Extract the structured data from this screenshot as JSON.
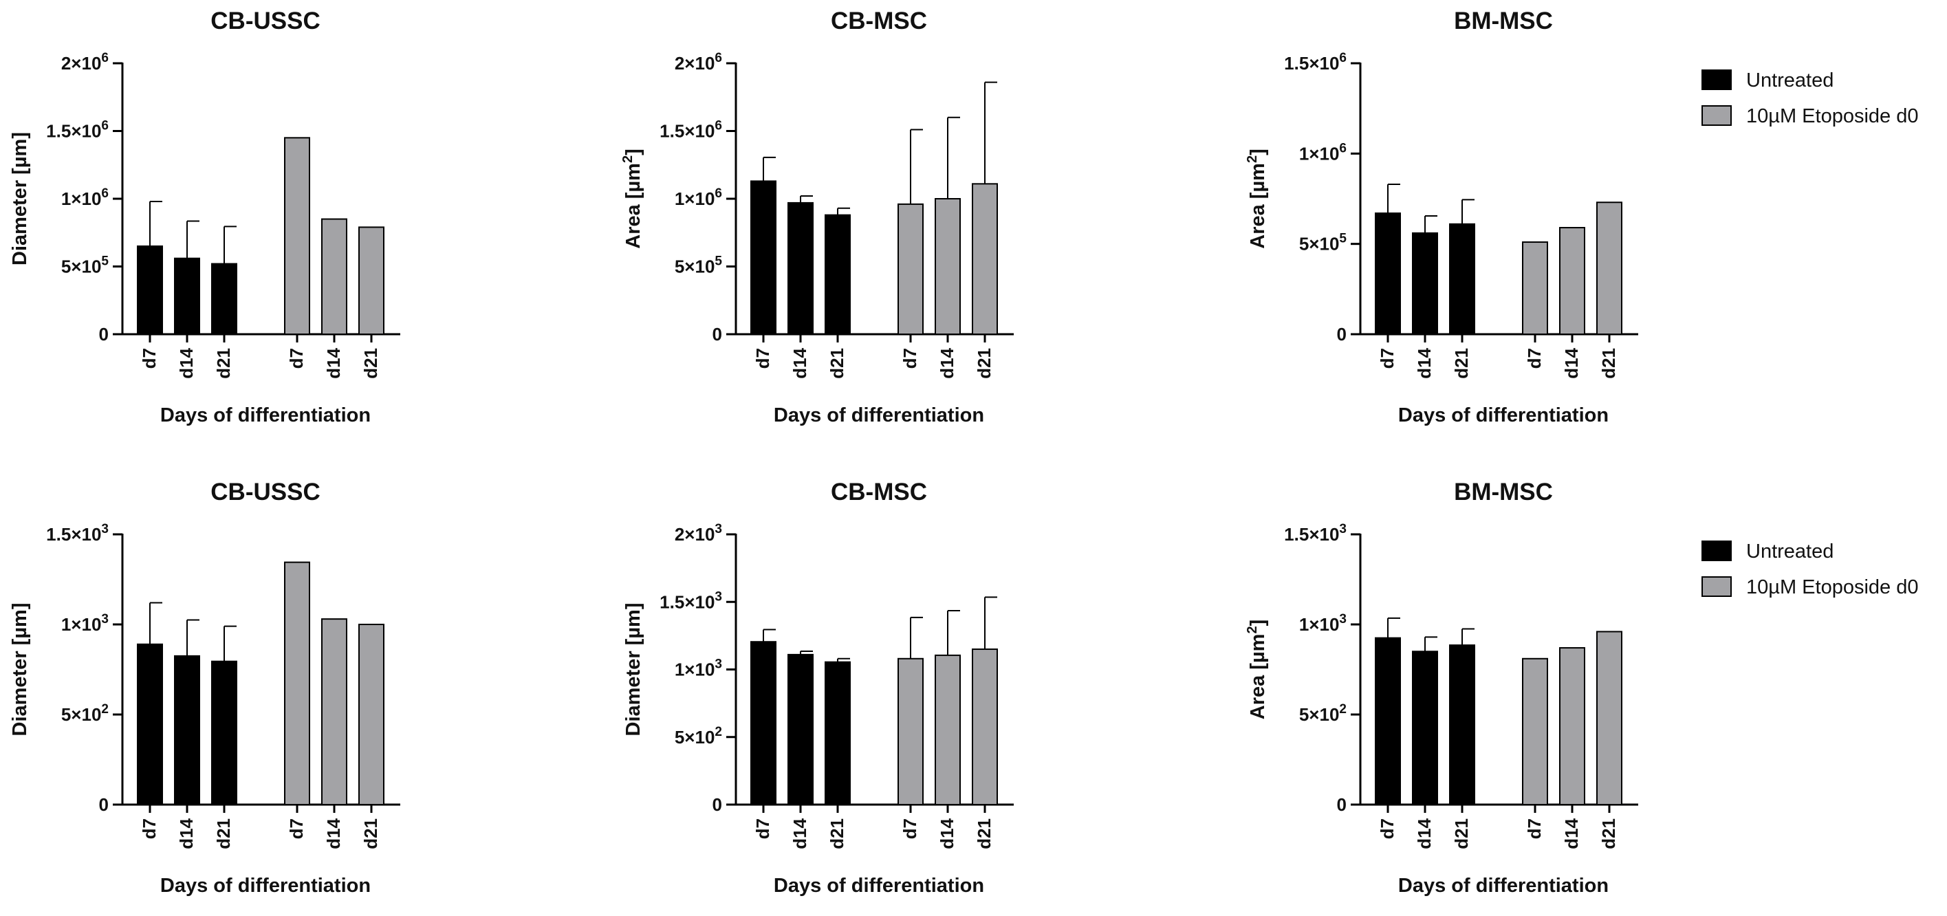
{
  "legend": {
    "entries": [
      {
        "label": "Untreated",
        "color": "#000000"
      },
      {
        "label": "10µM Etoposide d0",
        "color": "#a3a3a6"
      }
    ]
  },
  "chart_data": [
    {
      "type": "bar",
      "title": "CB-USSC",
      "ylabel": {
        "base": "Diameter [µm]",
        "sup": ""
      },
      "xlabel": "Days of differentiation",
      "categories": [
        "d7",
        "d14",
        "d21",
        "d7",
        "d14",
        "d21"
      ],
      "groups": [
        "Untreated",
        "Untreated",
        "Untreated",
        "10µM Etoposide d0",
        "10µM Etoposide d0",
        "10µM Etoposide d0"
      ],
      "values": [
        650000,
        560000,
        520000,
        1450000,
        850000,
        790000
      ],
      "errors": [
        330000,
        275000,
        275000,
        null,
        null,
        null
      ],
      "ylim": [
        0,
        2000000
      ],
      "yticks": [
        {
          "value": 0,
          "base": "0",
          "sup": ""
        },
        {
          "value": 500000,
          "base": "5×10",
          "sup": "5"
        },
        {
          "value": 1000000,
          "base": "1×10",
          "sup": "6"
        },
        {
          "value": 1500000,
          "base": "1.5×10",
          "sup": "6"
        },
        {
          "value": 2000000,
          "base": "2×10",
          "sup": "6"
        }
      ]
    },
    {
      "type": "bar",
      "title": "CB-MSC",
      "ylabel": {
        "base": "Area [µm",
        "sup": "2",
        "tail": "]"
      },
      "xlabel": "Days of differentiation",
      "categories": [
        "d7",
        "d14",
        "d21",
        "d7",
        "d14",
        "d21"
      ],
      "groups": [
        "Untreated",
        "Untreated",
        "Untreated",
        "10µM Etoposide d0",
        "10µM Etoposide d0",
        "10µM Etoposide d0"
      ],
      "values": [
        1130000,
        970000,
        880000,
        960000,
        1000000,
        1110000
      ],
      "errors": [
        175000,
        50000,
        50000,
        550000,
        600000,
        750000
      ],
      "ylim": [
        0,
        2000000
      ],
      "yticks": [
        {
          "value": 0,
          "base": "0",
          "sup": ""
        },
        {
          "value": 500000,
          "base": "5×10",
          "sup": "5"
        },
        {
          "value": 1000000,
          "base": "1×10",
          "sup": "6"
        },
        {
          "value": 1500000,
          "base": "1.5×10",
          "sup": "6"
        },
        {
          "value": 2000000,
          "base": "2×10",
          "sup": "6"
        }
      ]
    },
    {
      "type": "bar",
      "title": "BM-MSC",
      "ylabel": {
        "base": "Area [µm",
        "sup": "2",
        "tail": "]"
      },
      "xlabel": "Days of differentiation",
      "categories": [
        "d7",
        "d14",
        "d21",
        "d7",
        "d14",
        "d21"
      ],
      "groups": [
        "Untreated",
        "Untreated",
        "Untreated",
        "10µM Etoposide d0",
        "10µM Etoposide d0",
        "10µM Etoposide d0"
      ],
      "values": [
        670000,
        560000,
        610000,
        510000,
        590000,
        730000
      ],
      "errors": [
        160000,
        95000,
        135000,
        null,
        null,
        null
      ],
      "ylim": [
        0,
        1500000
      ],
      "yticks": [
        {
          "value": 0,
          "base": "0",
          "sup": ""
        },
        {
          "value": 500000,
          "base": "5×10",
          "sup": "5"
        },
        {
          "value": 1000000,
          "base": "1×10",
          "sup": "6"
        },
        {
          "value": 1500000,
          "base": "1.5×10",
          "sup": "6"
        }
      ]
    },
    {
      "type": "bar",
      "title": "CB-USSC",
      "ylabel": {
        "base": "Diameter [µm]",
        "sup": ""
      },
      "xlabel": "Days of differentiation",
      "categories": [
        "d7",
        "d14",
        "d21",
        "d7",
        "d14",
        "d21"
      ],
      "groups": [
        "Untreated",
        "Untreated",
        "Untreated",
        "10µM Etoposide d0",
        "10µM Etoposide d0",
        "10µM Etoposide d0"
      ],
      "values": [
        890,
        825,
        795,
        1345,
        1030,
        1000
      ],
      "errors": [
        230,
        200,
        195,
        null,
        null,
        null
      ],
      "ylim": [
        0,
        1500
      ],
      "yticks": [
        {
          "value": 0,
          "base": "0",
          "sup": ""
        },
        {
          "value": 500,
          "base": "5×10",
          "sup": "2"
        },
        {
          "value": 1000,
          "base": "1×10",
          "sup": "3"
        },
        {
          "value": 1500,
          "base": "1.5×10",
          "sup": "3"
        }
      ]
    },
    {
      "type": "bar",
      "title": "CB-MSC",
      "ylabel": {
        "base": "Diameter [µm]",
        "sup": ""
      },
      "xlabel": "Days of differentiation",
      "categories": [
        "d7",
        "d14",
        "d21",
        "d7",
        "d14",
        "d21"
      ],
      "groups": [
        "Untreated",
        "Untreated",
        "Untreated",
        "10µM Etoposide d0",
        "10µM Etoposide d0",
        "10µM Etoposide d0"
      ],
      "values": [
        1205,
        1110,
        1055,
        1080,
        1105,
        1150
      ],
      "errors": [
        90,
        25,
        25,
        305,
        330,
        385
      ],
      "ylim": [
        0,
        2000
      ],
      "yticks": [
        {
          "value": 0,
          "base": "0",
          "sup": ""
        },
        {
          "value": 500,
          "base": "5×10",
          "sup": "2"
        },
        {
          "value": 1000,
          "base": "1×10",
          "sup": "3"
        },
        {
          "value": 1500,
          "base": "1.5×10",
          "sup": "3"
        },
        {
          "value": 2000,
          "base": "2×10",
          "sup": "3"
        }
      ]
    },
    {
      "type": "bar",
      "title": "BM-MSC",
      "ylabel": {
        "base": "Area [µm",
        "sup": "2",
        "tail": "]"
      },
      "xlabel": "Days of differentiation",
      "categories": [
        "d7",
        "d14",
        "d21",
        "d7",
        "d14",
        "d21"
      ],
      "groups": [
        "Untreated",
        "Untreated",
        "Untreated",
        "10µM Etoposide d0",
        "10µM Etoposide d0",
        "10µM Etoposide d0"
      ],
      "values": [
        925,
        850,
        885,
        810,
        870,
        960
      ],
      "errors": [
        110,
        80,
        90,
        null,
        null,
        null
      ],
      "ylim": [
        0,
        1500
      ],
      "yticks": [
        {
          "value": 0,
          "base": "0",
          "sup": ""
        },
        {
          "value": 500,
          "base": "5×10",
          "sup": "2"
        },
        {
          "value": 1000,
          "base": "1×10",
          "sup": "3"
        },
        {
          "value": 1500,
          "base": "1.5×10",
          "sup": "3"
        }
      ]
    }
  ]
}
